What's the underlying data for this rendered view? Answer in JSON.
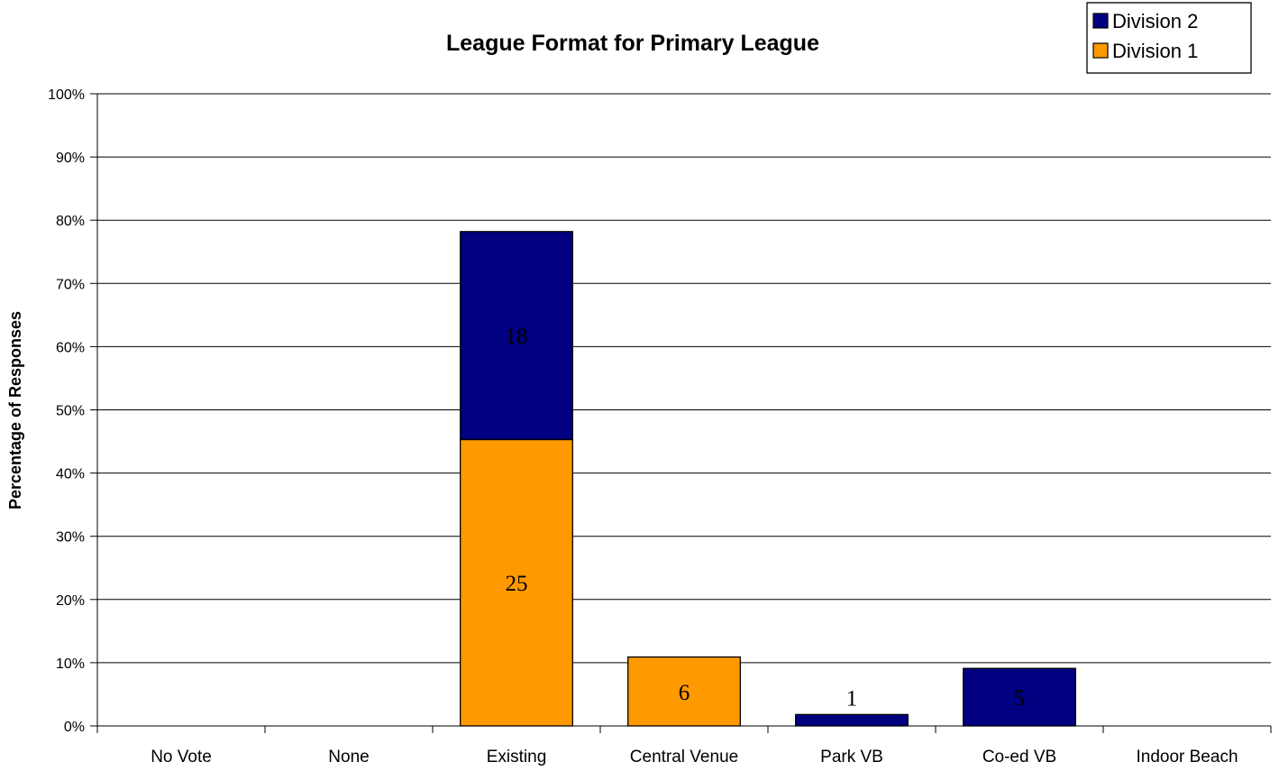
{
  "chart_data": {
    "type": "bar",
    "stacked": true,
    "title": "League Format for Primary League",
    "xlabel": "",
    "ylabel": "Percentage of Responses",
    "ylim": [
      0,
      100
    ],
    "y_tick_suffix": "%",
    "y_ticks": [
      0,
      10,
      20,
      30,
      40,
      50,
      60,
      70,
      80,
      90,
      100
    ],
    "grid": true,
    "legend_position": "top-right",
    "categories": [
      "No Vote",
      "None",
      "Existing",
      "Central Venue",
      "Park VB",
      "Co-ed VB",
      "Indoor Beach"
    ],
    "series": [
      {
        "name": "Division 1",
        "color": "#FF9900",
        "values": [
          0,
          0,
          45.3,
          10.9,
          0,
          0,
          0
        ],
        "counts": [
          null,
          null,
          25,
          6,
          null,
          null,
          null
        ]
      },
      {
        "name": "Division 2",
        "color": "#000080",
        "values": [
          0,
          0,
          32.9,
          0,
          1.8,
          9.1,
          0
        ],
        "counts": [
          null,
          null,
          18,
          null,
          1,
          5,
          null
        ]
      }
    ],
    "legend_order": [
      "Division 2",
      "Division 1"
    ]
  }
}
